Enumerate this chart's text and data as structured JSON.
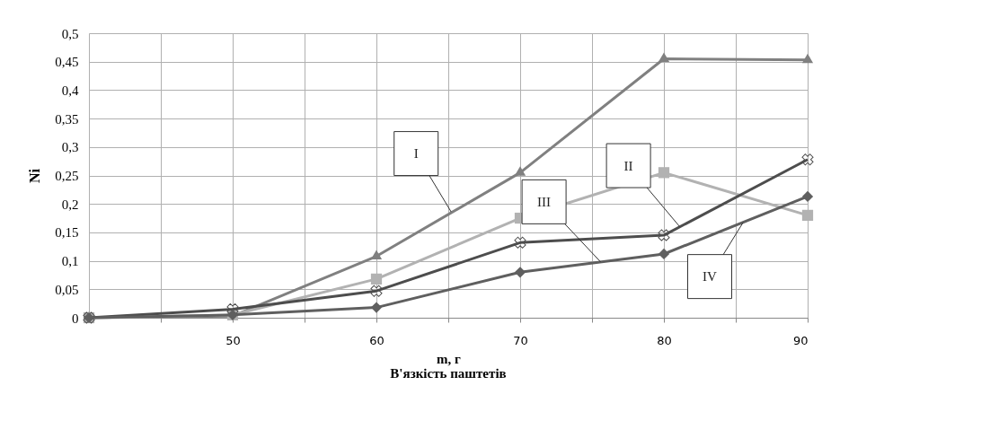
{
  "chart_data": {
    "type": "line",
    "title": "В'язкість паштетів",
    "xlabel": "m, г",
    "ylabel": "Ni",
    "x": [
      40,
      50,
      60,
      70,
      80,
      90
    ],
    "series": [
      {
        "color": "#808080",
        "marker": "triangle",
        "values": [
          0,
          0.003,
          0.108,
          0.255,
          0.455,
          0.453
        ]
      },
      {
        "color": "#b2b2b2",
        "marker": "square",
        "values": [
          0,
          0.005,
          0.068,
          0.175,
          0.255,
          0.18
        ]
      },
      {
        "color": "#4d4d4d",
        "marker": "cross",
        "values": [
          0,
          0.015,
          0.047,
          0.132,
          0.145,
          0.278
        ]
      },
      {
        "color": "#5f5f5f",
        "marker": "diamond",
        "values": [
          0,
          0.005,
          0.018,
          0.08,
          0.112,
          0.213
        ]
      }
    ],
    "annotations": [
      {
        "text": "I",
        "x": 65.2,
        "y": 0.186
      },
      {
        "text": "II",
        "x": 81.1,
        "y": 0.16
      },
      {
        "text": "III",
        "x": 75.6,
        "y": 0.098
      },
      {
        "text": "IV",
        "x": 85.5,
        "y": 0.167
      }
    ],
    "xlim": [
      40,
      90
    ],
    "xticks": [
      {
        "value": 40,
        "label": null
      },
      {
        "value": 45,
        "label": null
      },
      50,
      {
        "value": 55,
        "label": null
      },
      60,
      {
        "value": 65,
        "label": null
      },
      70,
      {
        "value": 75,
        "label": null
      },
      80,
      {
        "value": 85,
        "label": null
      },
      90
    ],
    "ylim": [
      0,
      0.5
    ],
    "yticks": [
      0,
      {
        "value": 0.05,
        "label": "0,05"
      },
      {
        "value": 0.1,
        "label": "0,1"
      },
      {
        "value": 0.15,
        "label": "0,15"
      },
      {
        "value": 0.2,
        "label": "0,2"
      },
      {
        "value": 0.25,
        "label": "0,25"
      },
      {
        "value": 0.3,
        "label": "0,3"
      },
      {
        "value": 0.35,
        "label": "0,35"
      },
      {
        "value": 0.4,
        "label": "0,4"
      },
      {
        "value": 0.45,
        "label": "0,45"
      },
      {
        "value": 0.5,
        "label": "0,5"
      }
    ],
    "grid": true,
    "line_style": "solid"
  }
}
